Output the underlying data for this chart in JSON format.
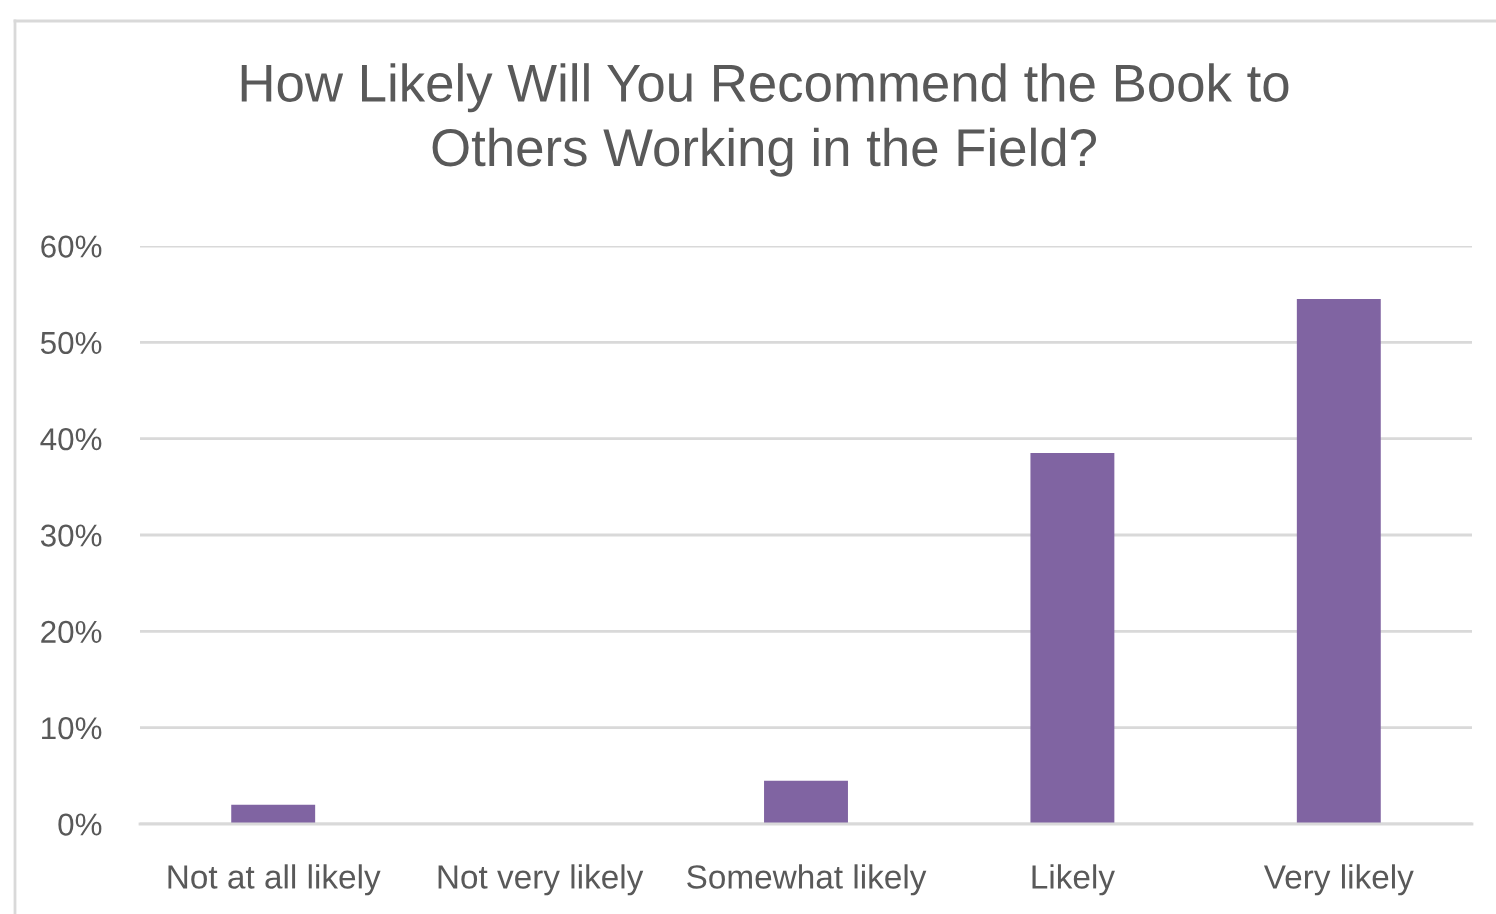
{
  "chart_data": {
    "type": "bar",
    "title": "How Likely Will You Recommend the Book to\nOthers Working in the Field?",
    "categories": [
      "Not at all likely",
      "Not very likely",
      "Somewhat likely",
      "Likely",
      "Very likely"
    ],
    "values": [
      2,
      0,
      4.5,
      38.5,
      54.5
    ],
    "color": "#8064a2",
    "ylim": [
      0,
      60
    ],
    "yticks": [
      {
        "value": 0,
        "label": "0%"
      },
      {
        "value": 10,
        "label": "10%"
      },
      {
        "value": 20,
        "label": "20%"
      },
      {
        "value": 30,
        "label": "30%"
      },
      {
        "value": 40,
        "label": "40%"
      },
      {
        "value": 50,
        "label": "50%"
      },
      {
        "value": 60,
        "label": "60%"
      }
    ],
    "grid": "y"
  }
}
